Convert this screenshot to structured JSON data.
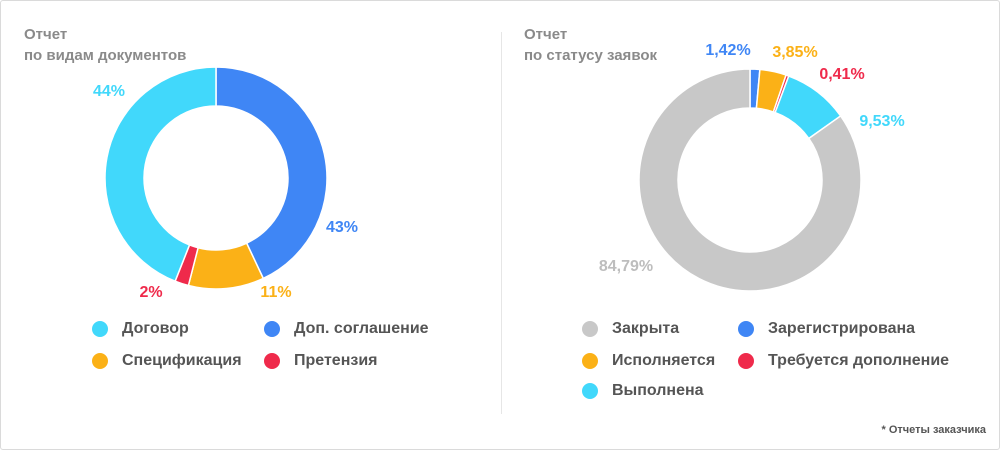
{
  "footnote": "* Отчеты заказчика",
  "chart_data": [
    {
      "type": "pie",
      "title_line1": "Отчет",
      "title_line2": "по видам документов",
      "slices": [
        {
          "label": "Доп. соглашение",
          "value": 43,
          "text": "43%",
          "color": "#3f86f5"
        },
        {
          "label": "Спецификация",
          "value": 11,
          "text": "11%",
          "color": "#fbb117"
        },
        {
          "label": "Претензия",
          "value": 2,
          "text": "2%",
          "color": "#ef2a4b"
        },
        {
          "label": "Договор",
          "value": 44,
          "text": "44%",
          "color": "#41d8fb"
        }
      ],
      "legend": [
        "Договор",
        "Доп. соглашение",
        "Спецификация",
        "Претензия"
      ]
    },
    {
      "type": "pie",
      "title_line1": "Отчет",
      "title_line2": "по статусу заявок",
      "slices": [
        {
          "label": "Зарегистрирована",
          "value": 1.42,
          "text": "1,42%",
          "color": "#3f86f5"
        },
        {
          "label": "Исполняется",
          "value": 3.85,
          "text": "3,85%",
          "color": "#fbb117"
        },
        {
          "label": "Требуется дополнение",
          "value": 0.41,
          "text": "0,41%",
          "color": "#ef2a4b"
        },
        {
          "label": "Выполнена",
          "value": 9.53,
          "text": "9,53%",
          "color": "#41d8fb"
        },
        {
          "label": "Закрыта",
          "value": 84.79,
          "text": "84,79%",
          "color": "#c8c8c8"
        }
      ],
      "legend": [
        "Закрыта",
        "Зарегистрирована",
        "Исполняется",
        "Требуется дополнение",
        "Выполнена"
      ]
    }
  ]
}
